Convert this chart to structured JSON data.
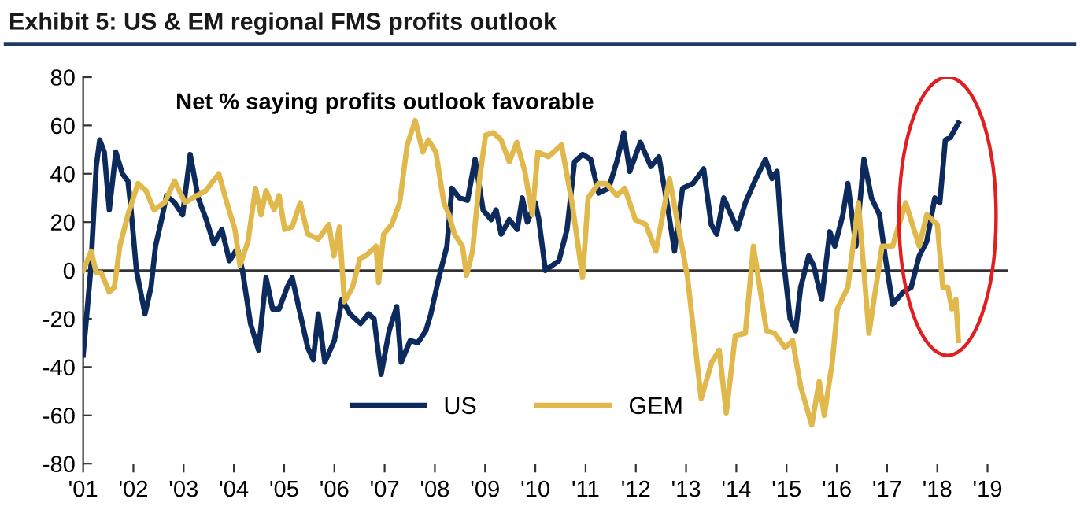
{
  "chart_data": {
    "type": "line",
    "title": "Exhibit 5: US & EM regional FMS profits outlook",
    "subtitle": "Net % saying profits outlook favorable",
    "xlim": [
      2001,
      2019.4
    ],
    "xticks": [
      {
        "value": 2001,
        "label": "'01"
      },
      {
        "value": 2002,
        "label": "'02"
      },
      {
        "value": 2003,
        "label": "'03"
      },
      {
        "value": 2004,
        "label": "'04"
      },
      {
        "value": 2005,
        "label": "'05"
      },
      {
        "value": 2006,
        "label": "'06"
      },
      {
        "value": 2007,
        "label": "'07"
      },
      {
        "value": 2008,
        "label": "'08"
      },
      {
        "value": 2009,
        "label": "'09"
      },
      {
        "value": 2010,
        "label": "'10"
      },
      {
        "value": 2011,
        "label": "'11"
      },
      {
        "value": 2012,
        "label": "'12"
      },
      {
        "value": 2013,
        "label": "'13"
      },
      {
        "value": 2014,
        "label": "'14"
      },
      {
        "value": 2015,
        "label": "'15"
      },
      {
        "value": 2016,
        "label": "'16"
      },
      {
        "value": 2017,
        "label": "'17"
      },
      {
        "value": 2018,
        "label": "'18"
      },
      {
        "value": 2019,
        "label": "'19"
      }
    ],
    "ylim": [
      -80,
      80
    ],
    "yticks": [
      -80,
      -60,
      -40,
      -20,
      0,
      20,
      40,
      60,
      80
    ],
    "ref_lines": [
      {
        "axis": "y",
        "value": 0,
        "color": "#333333"
      }
    ],
    "grid": false,
    "legend": "bottom",
    "marker": "none",
    "line_style": "solid",
    "series": [
      {
        "name": "US",
        "color": "#0c2a5c",
        "x": [
          2001.0,
          2001.15,
          2001.26,
          2001.33,
          2001.42,
          2001.52,
          2001.65,
          2001.78,
          2001.89,
          2001.94,
          2002.06,
          2002.23,
          2002.35,
          2002.44,
          2002.56,
          2002.66,
          2002.82,
          2002.98,
          2003.13,
          2003.29,
          2003.45,
          2003.6,
          2003.76,
          2003.91,
          2004.07,
          2004.17,
          2004.33,
          2004.49,
          2004.64,
          2004.77,
          2004.9,
          2005.06,
          2005.16,
          2005.32,
          2005.47,
          2005.58,
          2005.68,
          2005.81,
          2006.0,
          2006.15,
          2006.31,
          2006.52,
          2006.68,
          2006.79,
          2006.93,
          2007.09,
          2007.24,
          2007.33,
          2007.51,
          2007.66,
          2007.82,
          2007.92,
          2008.08,
          2008.24,
          2008.34,
          2008.49,
          2008.65,
          2008.8,
          2008.96,
          2009.12,
          2009.22,
          2009.32,
          2009.48,
          2009.64,
          2009.74,
          2009.84,
          2010.0,
          2010.07,
          2010.2,
          2010.47,
          2010.63,
          2010.78,
          2010.94,
          2011.1,
          2011.26,
          2011.46,
          2011.62,
          2011.76,
          2011.88,
          2012.09,
          2012.3,
          2012.46,
          2012.62,
          2012.77,
          2012.93,
          2013.14,
          2013.35,
          2013.5,
          2013.61,
          2013.75,
          2014.02,
          2014.18,
          2014.39,
          2014.58,
          2014.71,
          2014.81,
          2014.92,
          2015.07,
          2015.18,
          2015.28,
          2015.44,
          2015.54,
          2015.7,
          2015.86,
          2015.96,
          2016.12,
          2016.22,
          2016.38,
          2016.54,
          2016.69,
          2016.85,
          2016.96,
          2017.11,
          2017.32,
          2017.48,
          2017.64,
          2017.79,
          2017.95,
          2018.05,
          2018.16,
          2018.26,
          2018.42
        ],
        "values": [
          -35,
          0,
          43,
          54,
          49,
          25,
          49,
          40,
          37,
          28,
          0,
          -18,
          -7,
          10,
          21,
          31,
          28,
          23,
          48,
          30,
          21,
          11,
          17,
          4,
          9,
          0,
          -22,
          -33,
          -3,
          -16,
          -16,
          -7,
          -3,
          -18,
          -32,
          -37,
          -18,
          -38,
          -29,
          -12,
          -18,
          -22,
          -18,
          -20,
          -43,
          -25,
          -15,
          -38,
          -29,
          -30,
          -25,
          -18,
          -3,
          10,
          34,
          30,
          29,
          46,
          25,
          21,
          25,
          15,
          21,
          17,
          30,
          20,
          28,
          21,
          0,
          4,
          17,
          45,
          48,
          46,
          32,
          34,
          45,
          57,
          41,
          53,
          43,
          47,
          28,
          8,
          34,
          36,
          42,
          19,
          15,
          30,
          17,
          28,
          38,
          46,
          38,
          41,
          8,
          -20,
          -25,
          -7,
          6,
          2,
          -12,
          16,
          10,
          23,
          36,
          10,
          46,
          30,
          23,
          6,
          -14,
          -9,
          -7,
          6,
          12,
          30,
          28,
          54,
          55,
          61
        ]
      },
      {
        "name": "GEM",
        "color": "#e0b84c",
        "x": [
          2001.0,
          2001.16,
          2001.26,
          2001.36,
          2001.52,
          2001.62,
          2001.73,
          2001.89,
          2002.09,
          2002.25,
          2002.41,
          2002.62,
          2002.82,
          2003.03,
          2003.18,
          2003.44,
          2003.7,
          2003.86,
          2004.02,
          2004.12,
          2004.28,
          2004.43,
          2004.54,
          2004.64,
          2004.8,
          2004.9,
          2005.01,
          2005.16,
          2005.32,
          2005.47,
          2005.68,
          2005.89,
          2005.99,
          2006.1,
          2006.2,
          2006.36,
          2006.51,
          2006.62,
          2006.83,
          2006.88,
          2006.98,
          2007.14,
          2007.3,
          2007.45,
          2007.61,
          2007.76,
          2007.87,
          2008.02,
          2008.18,
          2008.28,
          2008.39,
          2008.55,
          2008.63,
          2008.75,
          2008.89,
          2009.01,
          2009.16,
          2009.32,
          2009.48,
          2009.63,
          2009.79,
          2009.94,
          2010.05,
          2010.26,
          2010.52,
          2010.73,
          2010.94,
          2011.05,
          2011.26,
          2011.41,
          2011.62,
          2011.78,
          2011.99,
          2012.2,
          2012.4,
          2012.67,
          2012.82,
          2013.03,
          2013.3,
          2013.51,
          2013.66,
          2013.8,
          2013.98,
          2014.18,
          2014.34,
          2014.6,
          2014.76,
          2014.97,
          2015.12,
          2015.28,
          2015.5,
          2015.65,
          2015.75,
          2015.91,
          2016.01,
          2016.22,
          2016.43,
          2016.64,
          2016.9,
          2017.11,
          2017.37,
          2017.64,
          2017.79,
          2018.0,
          2018.11,
          2018.21,
          2018.29,
          2018.37,
          2018.42
        ],
        "values": [
          0,
          8,
          -1,
          -1,
          -9,
          -7,
          10,
          23,
          36,
          33,
          25,
          28,
          37,
          28,
          30,
          33,
          40,
          28,
          17,
          2,
          12,
          34,
          23,
          33,
          25,
          31,
          17,
          18,
          28,
          15,
          13,
          19,
          6,
          18,
          -13,
          -7,
          5,
          6,
          10,
          -5,
          15,
          19,
          28,
          52,
          62,
          49,
          54,
          49,
          28,
          23,
          15,
          10,
          -2,
          8,
          38,
          56,
          57,
          54,
          45,
          53,
          41,
          23,
          49,
          47,
          52,
          28,
          -3,
          30,
          36,
          36,
          31,
          34,
          21,
          19,
          8,
          38,
          21,
          -3,
          -53,
          -38,
          -33,
          -59,
          -27,
          -26,
          10,
          -25,
          -26,
          -32,
          -29,
          -48,
          -64,
          -46,
          -60,
          -38,
          -16,
          -7,
          28,
          -26,
          10,
          10,
          28,
          10,
          23,
          19,
          -7,
          -7,
          -16,
          -12,
          -29
        ]
      }
    ]
  }
}
